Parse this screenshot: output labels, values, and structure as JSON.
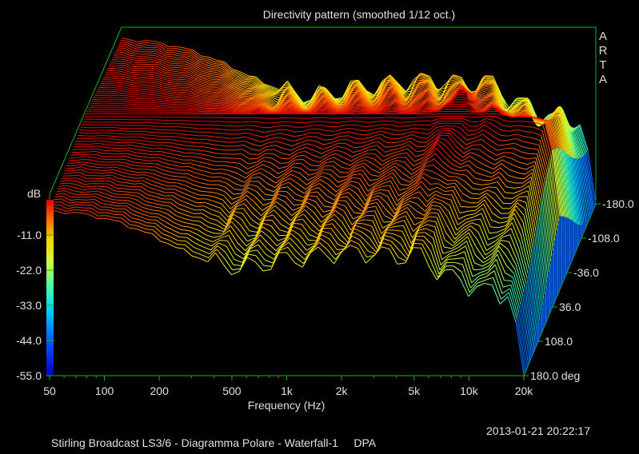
{
  "chart_data": {
    "type": "waterfall",
    "title": "Directivity pattern (smoothed 1/12 oct.)",
    "xlabel": "Frequency (Hz)",
    "x_scale": "log",
    "xlim": [
      50,
      20000
    ],
    "x_ticks": [
      {
        "value": 50,
        "label": "50"
      },
      {
        "value": 100,
        "label": "100"
      },
      {
        "value": 200,
        "label": "200"
      },
      {
        "value": 500,
        "label": "500"
      },
      {
        "value": 1000,
        "label": "1k"
      },
      {
        "value": 2000,
        "label": "2k"
      },
      {
        "value": 5000,
        "label": "5k"
      },
      {
        "value": 10000,
        "label": "10k"
      },
      {
        "value": 20000,
        "label": "20k"
      }
    ],
    "zlabel": "dB",
    "zlim": [
      -55,
      0
    ],
    "z_ticks": [
      {
        "value": -11,
        "label": "-11.0"
      },
      {
        "value": -22,
        "label": "-22.0"
      },
      {
        "value": -33,
        "label": "-33.0"
      },
      {
        "value": -44,
        "label": "-44.0"
      },
      {
        "value": -55,
        "label": "-55.0"
      }
    ],
    "ylim": [
      -180,
      180
    ],
    "y_ticks": [
      {
        "value": -180,
        "label": "-180.0"
      },
      {
        "value": -108,
        "label": "-108.0"
      },
      {
        "value": -36,
        "label": "-36.0"
      },
      {
        "value": 36,
        "label": "36.0"
      },
      {
        "value": 108,
        "label": "108.0"
      },
      {
        "value": 180,
        "label": "180.0 deg"
      }
    ],
    "angle_step_deg": 5,
    "colormap": [
      "#0000cc",
      "#0060ff",
      "#00c8ff",
      "#40ffb0",
      "#c8ff40",
      "#ffd000",
      "#ff6000",
      "#e00000"
    ],
    "grid": false,
    "legend": "colorbar-left"
  },
  "branding": "ARTA",
  "timestamp": "2013-01-21  20:22:17",
  "footer": "Stirling Broadcast LS3/6 - Diagramma Polare - Waterfall-1     DPA"
}
